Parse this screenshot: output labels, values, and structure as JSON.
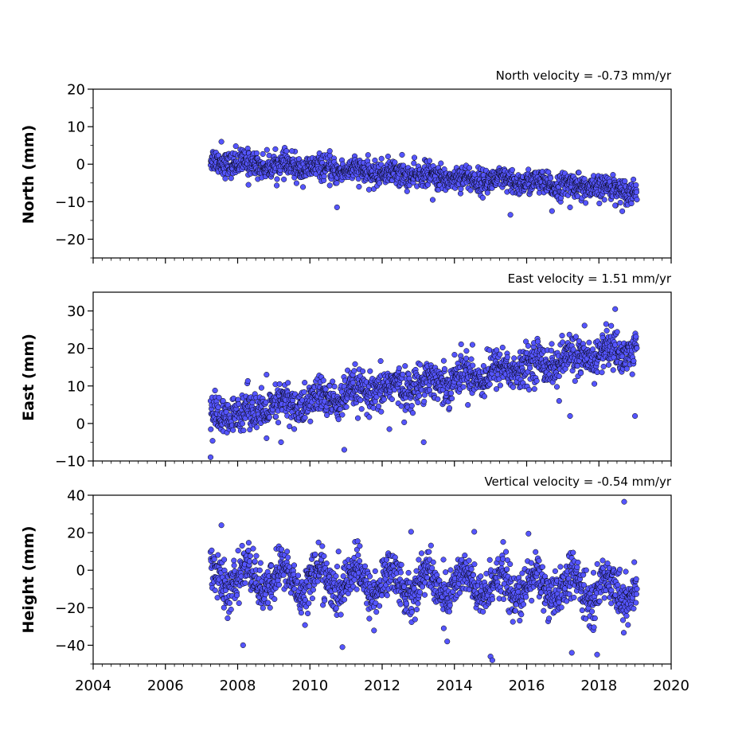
{
  "colors": {
    "point_fill": "#5555ff",
    "point_edge": "#000000",
    "axes": "#000000",
    "background": "#ffffff"
  },
  "chart_data": [
    {
      "type": "scatter",
      "title": "North velocity = -0.73 mm/yr",
      "xlabel": "",
      "ylabel": "North (mm)",
      "xlim": [
        2004,
        2020
      ],
      "ylim": [
        -25,
        20
      ],
      "yticks": [
        -20,
        -10,
        0,
        10,
        20
      ],
      "ytick_labels": [
        "−20",
        "−10",
        "0",
        "10",
        "20"
      ],
      "x_range": [
        2007.25,
        2019.05
      ],
      "velocity": -0.73,
      "series": [
        {
          "values_fn": "linear-plus-noise",
          "start": 0.8,
          "end": -7.0,
          "noise_sd": 1.6,
          "seasonal_amp": 0.6,
          "outliers": [
            [
              2008.3,
              -5.5
            ],
            [
              2010.75,
              -11.5
            ],
            [
              2015.55,
              -13.5
            ],
            [
              2016.7,
              -12.5
            ],
            [
              2017.2,
              -11.5
            ],
            [
              2007.95,
              4.8
            ],
            [
              2007.55,
              6.0
            ],
            [
              2009.5,
              3.5
            ],
            [
              2010.55,
              3.5
            ],
            [
              2012.55,
              2.5
            ],
            [
              2018.45,
              -11.0
            ],
            [
              2013.4,
              -9.5
            ]
          ]
        }
      ]
    },
    {
      "type": "scatter",
      "title": "East velocity = 1.51 mm/yr",
      "xlabel": "",
      "ylabel": "East (mm)",
      "xlim": [
        2004,
        2020
      ],
      "ylim": [
        -10,
        35
      ],
      "yticks": [
        -10,
        0,
        10,
        20,
        30
      ],
      "ytick_labels": [
        "−10",
        "0",
        "10",
        "20",
        "30"
      ],
      "x_range": [
        2007.25,
        2019.05
      ],
      "velocity": 1.51,
      "series": [
        {
          "values_fn": "linear-plus-noise",
          "start": 1.5,
          "end": 20.0,
          "noise_sd": 2.6,
          "seasonal_amp": 1.5,
          "outliers": [
            [
              2007.25,
              -9.0
            ],
            [
              2008.8,
              13.0
            ],
            [
              2009.2,
              -5.0
            ],
            [
              2010.95,
              -7.0
            ],
            [
              2012.2,
              -1.5
            ],
            [
              2013.15,
              -5.0
            ],
            [
              2014.5,
              21.0
            ],
            [
              2018.45,
              30.5
            ],
            [
              2019.0,
              2.0
            ],
            [
              2016.9,
              6.0
            ],
            [
              2017.2,
              2.0
            ],
            [
              2018.2,
              26.5
            ]
          ]
        }
      ]
    },
    {
      "type": "scatter",
      "title": "Vertical velocity = -0.54 mm/yr",
      "xlabel": "",
      "ylabel": "Height (mm)",
      "xlim": [
        2004,
        2020
      ],
      "ylim": [
        -50,
        40
      ],
      "yticks": [
        -40,
        -20,
        0,
        20,
        40
      ],
      "ytick_labels": [
        "−40",
        "−20",
        "0",
        "20",
        "40"
      ],
      "xticks": [
        2004,
        2006,
        2008,
        2010,
        2012,
        2014,
        2016,
        2018,
        2020
      ],
      "xtick_labels": [
        "2004",
        "2006",
        "2008",
        "2010",
        "2012",
        "2014",
        "2016",
        "2018",
        "2020"
      ],
      "x_range": [
        2007.25,
        2019.05
      ],
      "velocity": -0.54,
      "series": [
        {
          "values_fn": "linear-plus-noise",
          "start": -4.0,
          "end": -10.5,
          "noise_sd": 6.0,
          "seasonal_amp": 7.0,
          "outliers": [
            [
              2007.55,
              24.0
            ],
            [
              2008.15,
              -40.0
            ],
            [
              2010.9,
              -41.0
            ],
            [
              2012.8,
              20.5
            ],
            [
              2014.55,
              20.5
            ],
            [
              2015.0,
              -46.0
            ],
            [
              2015.05,
              -48.0
            ],
            [
              2017.25,
              -44.0
            ],
            [
              2017.95,
              -45.0
            ],
            [
              2018.7,
              36.5
            ],
            [
              2016.05,
              19.5
            ],
            [
              2013.8,
              -38.0
            ]
          ]
        }
      ]
    }
  ]
}
